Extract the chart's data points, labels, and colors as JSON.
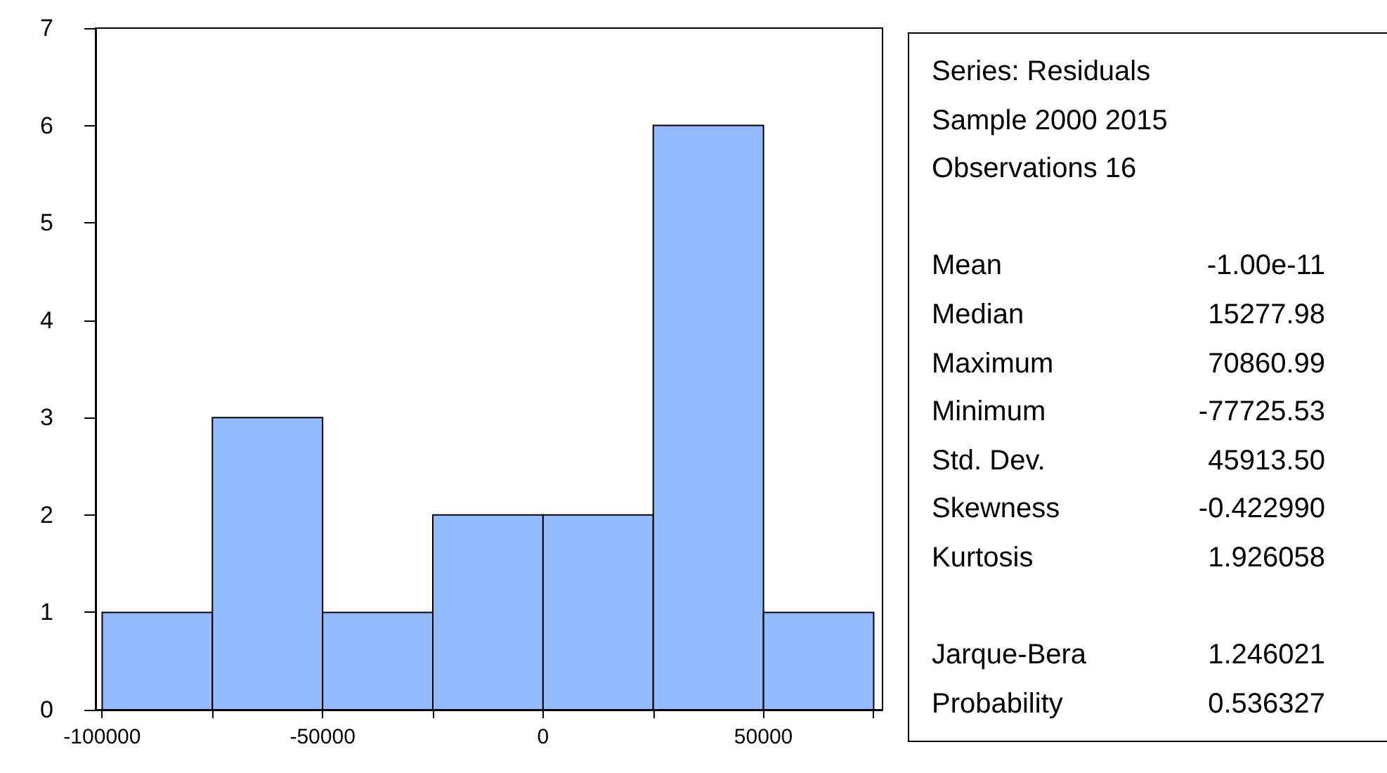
{
  "chart_data": [
    {
      "type": "histogram",
      "bins": [
        -100000,
        -75000,
        -50000,
        -25000,
        0,
        25000,
        50000,
        75000
      ],
      "values": [
        1,
        3,
        1,
        2,
        2,
        6,
        1
      ],
      "color": "#94bbff",
      "xlim": [
        -101500,
        77000
      ],
      "xticks": [
        -100000,
        {
          "value": -75000,
          "label": null
        },
        -50000,
        {
          "value": -25000,
          "label": null
        },
        0,
        {
          "value": 25000,
          "label": null
        },
        50000,
        {
          "value": 75000,
          "label": null
        }
      ],
      "ylim": [
        0,
        7
      ],
      "yticks": [
        0,
        1,
        2,
        3,
        4,
        5,
        6,
        7
      ],
      "grid": false
    },
    {
      "type": "other",
      "annotations": [
        "Series: Residuals",
        "Sample 2000 2015",
        "Observations 16",
        "Mean\t-1.00e-11",
        "Median\t15277.98",
        "Maximum\t70860.99",
        "Minimum\t-77725.53",
        "Std. Dev.\t45913.50",
        "Skewness\t-0.422990",
        "Kurtosis\t1.926058",
        "Jarque-Bera\t1.246021",
        "Probability\t0.536327"
      ]
    }
  ]
}
